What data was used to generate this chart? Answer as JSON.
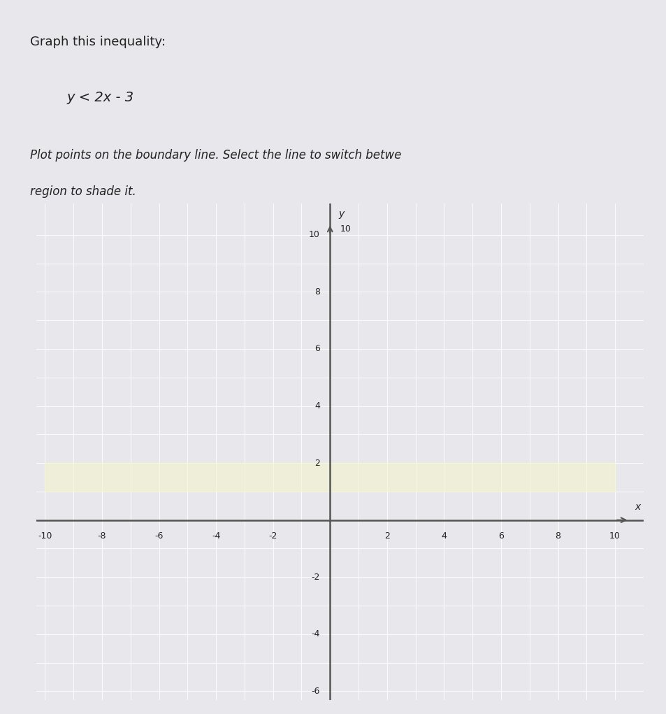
{
  "title_line1": "Graph this inequality:",
  "inequality": "y < 2x - 3",
  "instruction1": "Plot points on the boundary line. Select the line to switch betwe",
  "instruction2": "region to shade it.",
  "xlim": [
    -10,
    10
  ],
  "ylim": [
    -6,
    10
  ],
  "xticks": [
    -10,
    -8,
    -6,
    -4,
    -2,
    2,
    4,
    6,
    8,
    10
  ],
  "yticks": [
    -6,
    -4,
    -2,
    2,
    4,
    6,
    8,
    10
  ],
  "page_bg": "#e8e8ec",
  "navbar_bg": "#2a2a2a",
  "content_bg": "#e0e0e6",
  "grid_bg": "#d8d8de",
  "grid_color": "#ffffff",
  "axis_color": "#555555",
  "text_color": "#222222",
  "highlight_color": "#f5f5c8",
  "title_fontsize": 13,
  "body_fontsize": 12,
  "tick_fontsize": 9,
  "axislabel_fontsize": 10
}
